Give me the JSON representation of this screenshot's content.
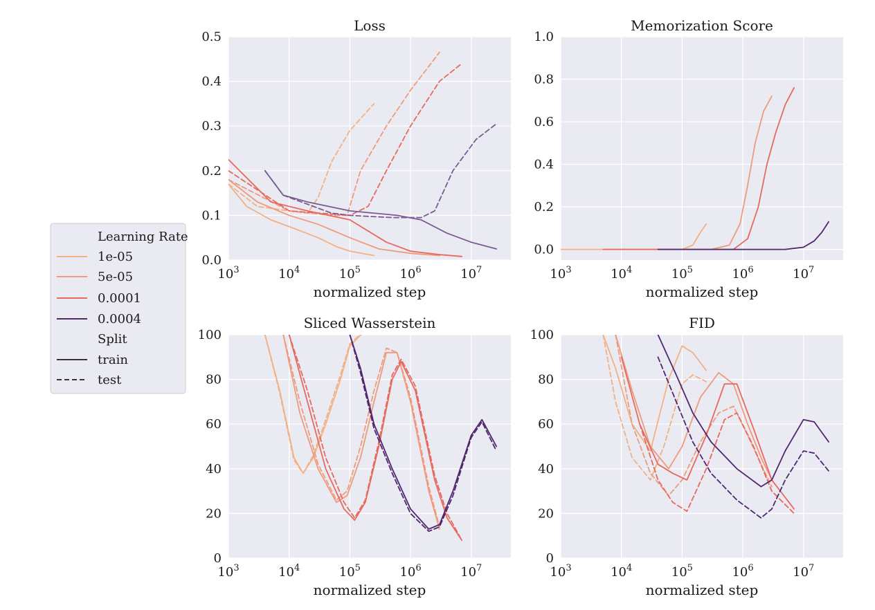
{
  "chart_data": [
    {
      "type": "line",
      "title": "Loss",
      "xlabel": "normalized step",
      "ylabel": "",
      "xscale": "log",
      "xlim": [
        1000,
        45000000
      ],
      "ylim": [
        0,
        0.5
      ],
      "yticks": [
        "0.0",
        "0.1",
        "0.2",
        "0.3",
        "0.4",
        "0.5"
      ],
      "series": [
        {
          "lr": "1e-05",
          "split": "train",
          "x": [
            1000,
            2000,
            5000,
            10000,
            30000,
            60000,
            100000,
            250000
          ],
          "y": [
            0.17,
            0.12,
            0.09,
            0.075,
            0.05,
            0.03,
            0.02,
            0.01
          ]
        },
        {
          "lr": "1e-05",
          "split": "test",
          "x": [
            1000,
            3000,
            10000,
            20000,
            30000,
            50000,
            100000,
            250000
          ],
          "y": [
            0.17,
            0.12,
            0.11,
            0.105,
            0.14,
            0.22,
            0.29,
            0.35
          ]
        },
        {
          "lr": "5e-05",
          "split": "train",
          "x": [
            1000,
            3000,
            10000,
            30000,
            100000,
            300000,
            1000000,
            3000000
          ],
          "y": [
            0.18,
            0.13,
            0.1,
            0.08,
            0.05,
            0.025,
            0.015,
            0.01
          ]
        },
        {
          "lr": "5e-05",
          "split": "test",
          "x": [
            1000,
            10000,
            50000,
            90000,
            150000,
            400000,
            1000000,
            3000000
          ],
          "y": [
            0.18,
            0.11,
            0.1,
            0.1,
            0.2,
            0.3,
            0.38,
            0.465
          ]
        },
        {
          "lr": "0.0001",
          "split": "train",
          "x": [
            1000,
            5000,
            20000,
            100000,
            400000,
            1000000,
            3000000,
            7000000
          ],
          "y": [
            0.225,
            0.13,
            0.11,
            0.09,
            0.04,
            0.02,
            0.012,
            0.008
          ]
        },
        {
          "lr": "0.0001",
          "split": "test",
          "x": [
            1000,
            10000,
            100000,
            200000,
            400000,
            1000000,
            3000000,
            7000000
          ],
          "y": [
            0.2,
            0.11,
            0.1,
            0.12,
            0.2,
            0.3,
            0.4,
            0.44
          ]
        },
        {
          "lr": "0.0004",
          "split": "train",
          "x": [
            4000,
            8000,
            20000,
            100000,
            600000,
            1500000,
            4000000,
            10000000,
            26000000
          ],
          "y": [
            0.2,
            0.145,
            0.13,
            0.11,
            0.1,
            0.09,
            0.06,
            0.04,
            0.025
          ]
        },
        {
          "lr": "0.0004",
          "split": "test",
          "x": [
            4000,
            8000,
            50000,
            100000,
            500000,
            1500000,
            2500000,
            5000000,
            12000000,
            26000000
          ],
          "y": [
            0.2,
            0.145,
            0.105,
            0.1,
            0.095,
            0.095,
            0.11,
            0.2,
            0.27,
            0.305
          ]
        }
      ]
    },
    {
      "type": "line",
      "title": "Memorization Score",
      "xlabel": "normalized step",
      "ylabel": "",
      "xscale": "log",
      "xlim": [
        1000,
        45000000
      ],
      "ylim": [
        -0.05,
        1.0
      ],
      "yticks": [
        "0.0",
        "0.2",
        "0.4",
        "0.6",
        "0.8",
        "1.0"
      ],
      "series": [
        {
          "lr": "1e-05",
          "x": [
            1000,
            100000,
            150000,
            200000,
            250000
          ],
          "y": [
            0.0,
            0.0,
            0.02,
            0.08,
            0.12
          ]
        },
        {
          "lr": "5e-05",
          "x": [
            5000,
            300000,
            600000,
            900000,
            1200000,
            1600000,
            2200000,
            3000000
          ],
          "y": [
            0.0,
            0.0,
            0.02,
            0.12,
            0.3,
            0.5,
            0.65,
            0.72
          ]
        },
        {
          "lr": "0.0001",
          "x": [
            5000,
            700000,
            1200000,
            1800000,
            2500000,
            3500000,
            5000000,
            7000000
          ],
          "y": [
            0.0,
            0.0,
            0.05,
            0.2,
            0.4,
            0.55,
            0.68,
            0.76
          ]
        },
        {
          "lr": "0.0004",
          "x": [
            40000,
            5000000,
            10000000,
            15000000,
            20000000,
            26000000
          ],
          "y": [
            0.0,
            0.0,
            0.01,
            0.04,
            0.08,
            0.13
          ]
        }
      ]
    },
    {
      "type": "line",
      "title": "Sliced Wasserstein",
      "xlabel": "normalized step",
      "ylabel": "",
      "xscale": "log",
      "xlim": [
        1000,
        45000000
      ],
      "ylim": [
        0,
        100
      ],
      "yticks": [
        "0",
        "20",
        "40",
        "60",
        "80",
        "100"
      ],
      "series": [
        {
          "lr": "1e-05",
          "split": "train",
          "x": [
            4000,
            7000,
            12000,
            17000,
            25000,
            40000,
            70000,
            100000,
            180000,
            250000
          ],
          "y": [
            100,
            75,
            45,
            38,
            45,
            60,
            80,
            95,
            102,
            102
          ]
        },
        {
          "lr": "1e-05",
          "split": "test",
          "x": [
            4000,
            7000,
            12000,
            17000,
            25000,
            40000,
            70000,
            100000,
            180000,
            250000
          ],
          "y": [
            100,
            74,
            44,
            38,
            46,
            62,
            82,
            96,
            102,
            102
          ]
        },
        {
          "lr": "5e-05",
          "split": "train",
          "x": [
            8000,
            15000,
            30000,
            60000,
            90000,
            150000,
            250000,
            400000,
            600000,
            1000000,
            2000000,
            3000000
          ],
          "y": [
            100,
            65,
            40,
            25,
            28,
            45,
            70,
            92,
            92,
            70,
            30,
            13
          ]
        },
        {
          "lr": "5e-05",
          "split": "test",
          "x": [
            8000,
            15000,
            30000,
            60000,
            90000,
            150000,
            250000,
            400000,
            600000,
            1000000,
            2000000,
            3000000
          ],
          "y": [
            100,
            70,
            42,
            26,
            30,
            50,
            75,
            94,
            92,
            72,
            32,
            14
          ]
        },
        {
          "lr": "0.0001",
          "split": "train",
          "x": [
            10000,
            20000,
            40000,
            80000,
            120000,
            180000,
            300000,
            500000,
            700000,
            1200000,
            2500000,
            4000000,
            7000000
          ],
          "y": [
            100,
            70,
            40,
            22,
            17,
            25,
            50,
            80,
            88,
            75,
            35,
            18,
            8
          ]
        },
        {
          "lr": "0.0001",
          "split": "test",
          "x": [
            10000,
            20000,
            40000,
            80000,
            120000,
            180000,
            300000,
            500000,
            700000,
            1200000,
            2500000,
            4000000,
            7000000
          ],
          "y": [
            100,
            75,
            45,
            25,
            18,
            26,
            52,
            82,
            89,
            77,
            37,
            20,
            8
          ]
        },
        {
          "lr": "0.0004",
          "split": "train",
          "x": [
            100000,
            150000,
            250000,
            500000,
            1000000,
            2000000,
            3000000,
            5000000,
            10000000,
            15000000,
            26000000
          ],
          "y": [
            100,
            85,
            60,
            40,
            22,
            13,
            15,
            30,
            55,
            62,
            50
          ]
        },
        {
          "lr": "0.0004",
          "split": "test",
          "x": [
            100000,
            150000,
            250000,
            500000,
            1000000,
            2000000,
            3000000,
            5000000,
            10000000,
            15000000,
            26000000
          ],
          "y": [
            100,
            83,
            58,
            38,
            20,
            12,
            14,
            28,
            54,
            61,
            48
          ]
        }
      ]
    },
    {
      "type": "line",
      "title": "FID",
      "xlabel": "normalized step",
      "ylabel": "",
      "xscale": "log",
      "xlim": [
        1000,
        45000000
      ],
      "ylim": [
        0,
        100
      ],
      "yticks": [
        "0",
        "20",
        "40",
        "60",
        "80",
        "100"
      ],
      "series": [
        {
          "lr": "1e-05",
          "split": "train",
          "x": [
            5000,
            8000,
            15000,
            30000,
            60000,
            100000,
            150000,
            250000
          ],
          "y": [
            100,
            85,
            60,
            48,
            80,
            95,
            92,
            84
          ]
        },
        {
          "lr": "1e-05",
          "split": "test",
          "x": [
            5000,
            8000,
            15000,
            30000,
            50000,
            100000,
            150000,
            250000
          ],
          "y": [
            100,
            70,
            45,
            35,
            50,
            78,
            82,
            79
          ]
        },
        {
          "lr": "5e-05",
          "split": "train",
          "x": [
            8000,
            15000,
            30000,
            60000,
            100000,
            200000,
            400000,
            700000,
            1200000,
            2000000,
            3000000
          ],
          "y": [
            100,
            75,
            50,
            40,
            50,
            72,
            83,
            78,
            60,
            45,
            35
          ]
        },
        {
          "lr": "5e-05",
          "split": "test",
          "x": [
            8000,
            15000,
            30000,
            60000,
            100000,
            200000,
            400000,
            700000,
            1200000,
            2000000,
            3000000
          ],
          "y": [
            100,
            60,
            38,
            28,
            35,
            52,
            65,
            68,
            55,
            42,
            32
          ]
        },
        {
          "lr": "0.0001",
          "split": "train",
          "x": [
            10000,
            20000,
            40000,
            70000,
            120000,
            250000,
            500000,
            800000,
            1500000,
            3000000,
            7000000
          ],
          "y": [
            90,
            60,
            42,
            38,
            35,
            55,
            78,
            78,
            58,
            35,
            22
          ]
        },
        {
          "lr": "0.0001",
          "split": "test",
          "x": [
            20000,
            40000,
            70000,
            120000,
            250000,
            500000,
            800000,
            1500000,
            3000000,
            7000000
          ],
          "y": [
            60,
            35,
            25,
            21,
            40,
            62,
            65,
            50,
            30,
            20
          ]
        },
        {
          "lr": "0.0004",
          "split": "train",
          "x": [
            40000,
            80000,
            150000,
            300000,
            800000,
            2000000,
            3000000,
            5000000,
            10000000,
            15000000,
            26000000
          ],
          "y": [
            100,
            82,
            65,
            52,
            40,
            32,
            35,
            48,
            62,
            61,
            52
          ]
        },
        {
          "lr": "0.0004",
          "split": "test",
          "x": [
            40000,
            80000,
            150000,
            300000,
            800000,
            2000000,
            3000000,
            5000000,
            10000000,
            15000000,
            26000000
          ],
          "y": [
            90,
            70,
            52,
            38,
            26,
            18,
            22,
            35,
            48,
            47,
            39
          ]
        }
      ]
    }
  ],
  "xtick_exponents": [
    "3",
    "4",
    "5",
    "6",
    "7"
  ],
  "xtick_base": "10",
  "legend": {
    "lr_title": "Learning Rate",
    "lr_entries": [
      {
        "label": "1e-05",
        "color": "#f2b183"
      },
      {
        "label": "5e-05",
        "color": "#ee9a7b"
      },
      {
        "label": "0.0001",
        "color": "#e7695d"
      },
      {
        "label": "0.0004",
        "color": "#50266d"
      }
    ],
    "split_title": "Split",
    "split_entries": [
      {
        "label": "train",
        "style": "solid"
      },
      {
        "label": "test",
        "style": "dashed"
      }
    ],
    "placement": "left"
  },
  "colors": {
    "1e-05": "#f2b183",
    "5e-05": "#ee9a7b",
    "0.0001": "#e7695d",
    "0.0004": "#50266d",
    "loss_0.0004": "#7a5a93"
  }
}
